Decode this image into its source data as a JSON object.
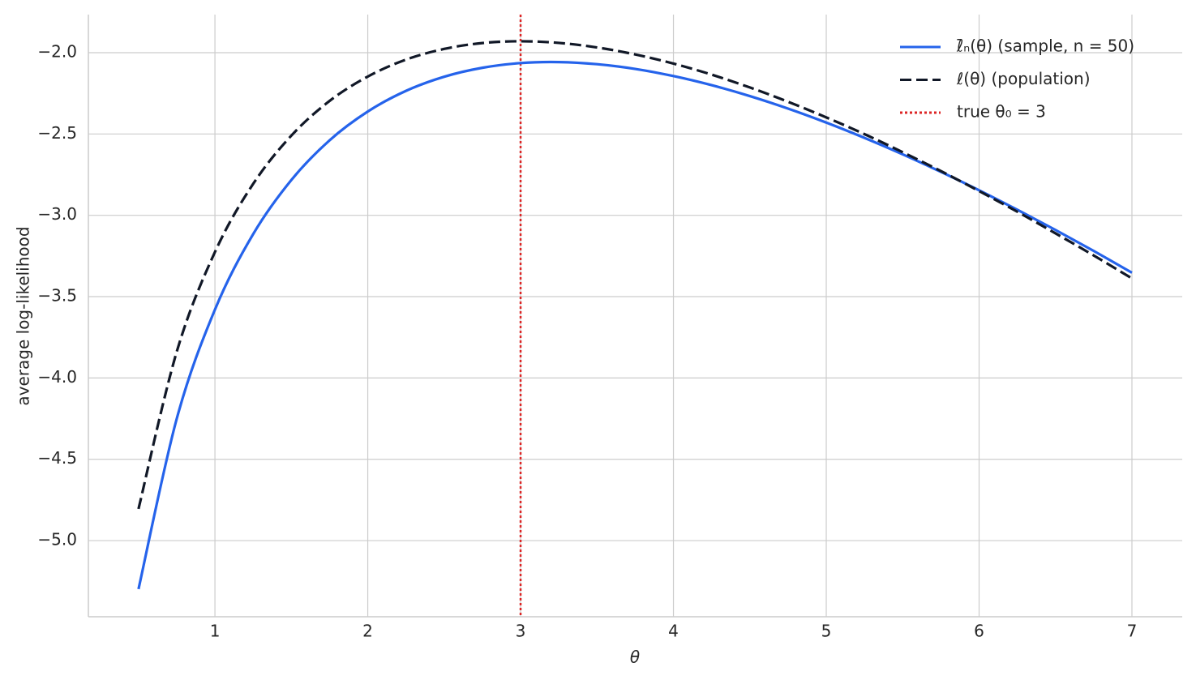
{
  "chart_data": {
    "type": "line",
    "xlabel": "θ",
    "ylabel": "average log-likelihood",
    "xlim": [
      0.172,
      7.329
    ],
    "ylim": [
      -5.468,
      -1.766
    ],
    "xticks": [
      1,
      2,
      3,
      4,
      5,
      6,
      7
    ],
    "yticks": [
      {
        "value": -5.0,
        "label": "−5.0"
      },
      {
        "value": -4.5,
        "label": "−4.5"
      },
      {
        "value": -4.0,
        "label": "−4.0"
      },
      {
        "value": -3.5,
        "label": "−3.5"
      },
      {
        "value": -3.0,
        "label": "−3.0"
      },
      {
        "value": -2.5,
        "label": "−2.5"
      },
      {
        "value": -2.0,
        "label": "−2.0"
      }
    ],
    "grid": true,
    "legend": "upper right",
    "x": [
      0.5,
      0.75,
      1.0,
      1.25,
      1.5,
      1.75,
      2.0,
      2.25,
      2.5,
      2.75,
      3.0,
      3.25,
      3.5,
      3.75,
      4.0,
      4.25,
      4.5,
      4.75,
      5.0,
      5.25,
      5.5,
      5.75,
      6.0,
      6.25,
      6.5,
      6.75,
      7.0
    ],
    "series": [
      {
        "name": "ℓ̄ₙ(θ) (sample, n = 50)",
        "color": "#2563eb",
        "linestyle": "solid",
        "values": [
          -5.298,
          -4.251,
          -3.58,
          -3.116,
          -2.783,
          -2.539,
          -2.362,
          -2.235,
          -2.148,
          -2.093,
          -2.064,
          -2.058,
          -2.071,
          -2.1,
          -2.144,
          -2.2,
          -2.267,
          -2.344,
          -2.43,
          -2.524,
          -2.625,
          -2.733,
          -2.846,
          -2.966,
          -3.09,
          -3.219,
          -3.353
        ]
      },
      {
        "name": "ℓ(θ) (population)",
        "color": "#111827",
        "linestyle": "dashed",
        "values": [
          -4.805,
          -3.839,
          -3.226,
          -2.807,
          -2.51,
          -2.297,
          -2.147,
          -2.043,
          -1.977,
          -1.941,
          -1.93,
          -1.94,
          -1.968,
          -2.011,
          -2.067,
          -2.135,
          -2.214,
          -2.302,
          -2.398,
          -2.501,
          -2.612,
          -2.728,
          -2.851,
          -2.978,
          -3.111,
          -3.247,
          -3.388
        ]
      }
    ],
    "reference_line": {
      "name": "true θ₀ = 3",
      "x": 3,
      "color": "#dc2626",
      "linestyle": "dotted"
    }
  }
}
